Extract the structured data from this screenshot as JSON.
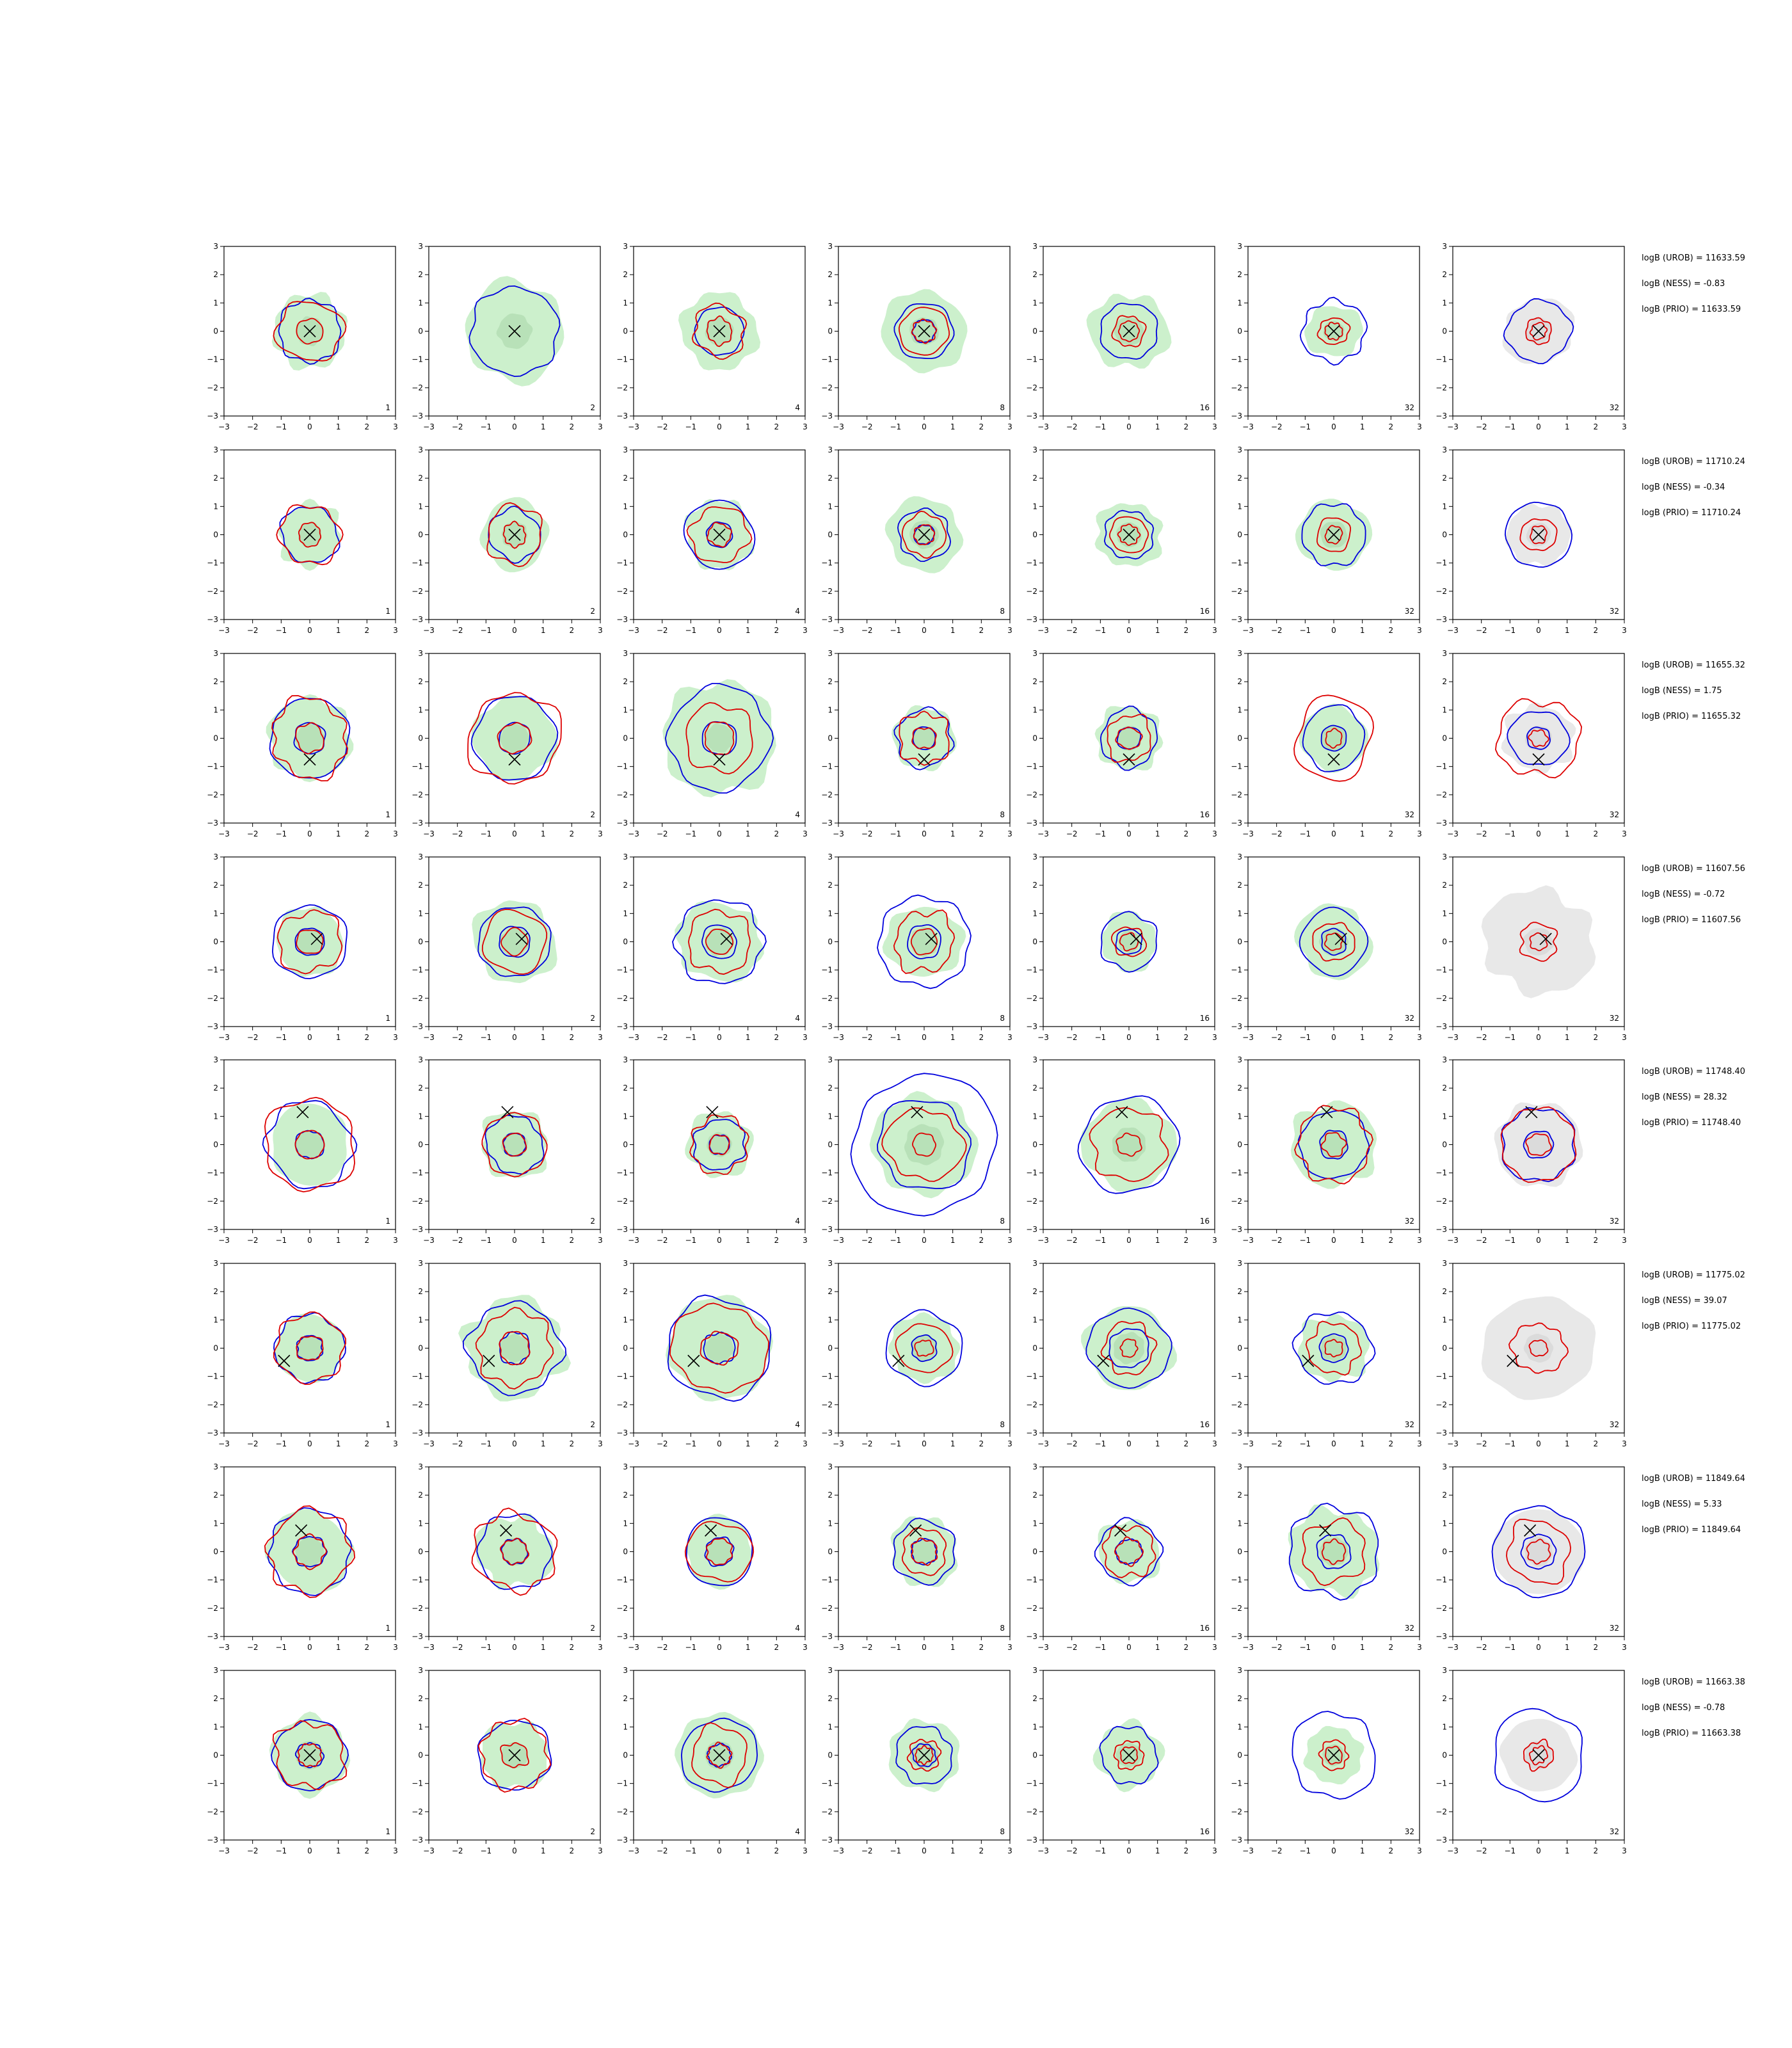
{
  "chart_data": {
    "type": "contour",
    "layout": {
      "rows": 8,
      "cols": 7
    },
    "axes": {
      "xlim": [
        -3,
        3
      ],
      "ylim": [
        -3,
        3
      ],
      "xticks": [
        -3,
        -2,
        -1,
        0,
        1,
        2,
        3
      ],
      "yticks": [
        -3,
        -2,
        -1,
        0,
        1,
        2,
        3
      ],
      "xticklabels": [
        "−3",
        "−2",
        "−1",
        "0",
        "1",
        "2",
        "3"
      ],
      "yticklabels": [
        "−3",
        "−2",
        "−1",
        "0",
        "1",
        "2",
        "3"
      ]
    },
    "panel_labels": [
      "1",
      "2",
      "4",
      "8",
      "16",
      "32",
      "32"
    ],
    "colors": {
      "fill_light": "#ccf0cc",
      "fill_dark": "#a8d6a8",
      "fill_gray_light": "#e8e8e8",
      "fill_gray_dark": "#d0d0d0",
      "blue": "#0000dd",
      "red": "#dd0000",
      "marker": "#000000"
    },
    "rows": [
      {
        "annotations": [
          "logB (UROB) = 11633.59",
          "logB (NESS) = -0.83",
          "logB (PRIO) = 11633.59"
        ],
        "marker": [
          0,
          0
        ],
        "panels": [
          {
            "fill": 1.3,
            "blue": [
              1.1
            ],
            "red": [
              1.1,
              0.45
            ]
          },
          {
            "fill": 1.75,
            "blue": [
              1.55
            ],
            "red": [],
            "dark": 0.6
          },
          {
            "fill": 1.35,
            "blue": [
              0.85
            ],
            "red": [
              0.9,
              0.45
            ]
          },
          {
            "fill": 1.45,
            "blue": [
              1.0,
              0.4
            ],
            "red": [
              0.85,
              0.4
            ]
          },
          {
            "fill": 1.35,
            "blue": [
              1.0
            ],
            "red": [
              0.55,
              0.35
            ]
          },
          {
            "fill": 0.95,
            "blue": [
              1.1
            ],
            "red": [
              0.5,
              0.3
            ]
          },
          {
            "fill": 1.2,
            "blue": [
              1.1
            ],
            "red": [
              0.45,
              0.28
            ],
            "gray": true
          }
        ]
      },
      {
        "annotations": [
          "logB (UROB) = 11710.24",
          "logB (NESS) = -0.34",
          "logB (PRIO) = 11710.24"
        ],
        "marker": [
          0,
          0
        ],
        "panels": [
          {
            "fill": 1.1,
            "blue": [
              1.0
            ],
            "red": [
              1.05,
              0.4
            ]
          },
          {
            "fill": 1.2,
            "blue": [
              0.9
            ],
            "red": [
              1.0,
              0.4
            ]
          },
          {
            "fill": 1.2,
            "blue": [
              1.2,
              0.45
            ],
            "red": [
              1.0,
              0.4
            ]
          },
          {
            "fill": 1.3,
            "blue": [
              0.9,
              0.35
            ],
            "red": [
              0.75,
              0.35
            ]
          },
          {
            "fill": 1.15,
            "blue": [
              0.85
            ],
            "red": [
              0.65,
              0.35
            ]
          },
          {
            "fill": 1.25,
            "blue": [
              1.1
            ],
            "red": [
              0.6,
              0.3
            ]
          },
          {
            "fill": 1.1,
            "blue": [
              1.15
            ],
            "red": [
              0.6,
              0.3
            ],
            "gray": true
          }
        ]
      },
      {
        "annotations": [
          "logB (UROB) = 11655.32",
          "logB (NESS) = 1.75",
          "logB (PRIO) = 11655.32"
        ],
        "marker": [
          0,
          -0.75
        ],
        "panels": [
          {
            "fill": 1.45,
            "blue": [
              1.4,
              0.55
            ],
            "red": [
              1.35,
              0.5
            ]
          },
          {
            "fill": 1.45,
            "blue": [
              1.45,
              0.55
            ],
            "red": [
              1.6,
              0.55
            ]
          },
          {
            "fill": 2.0,
            "blue": [
              1.8,
              0.6
            ],
            "red": [
              1.2,
              0.55
            ]
          },
          {
            "fill": 1.1,
            "blue": [
              1.0,
              0.4
            ],
            "red": [
              0.9,
              0.4
            ]
          },
          {
            "fill": 1.15,
            "blue": [
              1.0,
              0.4
            ],
            "red": [
              0.8,
              0.4
            ]
          },
          {
            "fill": 1.15,
            "blue": [
              1.1,
              0.45
            ],
            "red": [
              1.4,
              0.3
            ]
          },
          {
            "fill": 1.2,
            "blue": [
              1.0,
              0.4
            ],
            "red": [
              1.4,
              0.3
            ],
            "gray": true
          }
        ]
      },
      {
        "annotations": [
          "logB (UROB) = 11607.56",
          "logB (NESS) = -0.72",
          "logB (PRIO) = 11607.56"
        ],
        "marker": [
          0.25,
          0.1
        ],
        "panels": [
          {
            "fill": 1.2,
            "blue": [
              1.3,
              0.5
            ],
            "red": [
              1.1,
              0.45
            ]
          },
          {
            "fill": 1.45,
            "blue": [
              1.25,
              0.55
            ],
            "red": [
              1.1,
              0.45
            ]
          },
          {
            "fill": 1.45,
            "blue": [
              1.5,
              0.6
            ],
            "red": [
              1.1,
              0.45
            ]
          },
          {
            "fill": 1.3,
            "blue": [
              1.6,
              0.6
            ],
            "red": [
              1.05,
              0.45
            ]
          },
          {
            "fill": 1.0,
            "blue": [
              1.0,
              0.45
            ],
            "red": [
              0.55,
              0.3
            ]
          },
          {
            "fill": 1.3,
            "blue": [
              1.15,
              0.45
            ],
            "red": [
              0.7,
              0.3
            ]
          },
          {
            "fill": 1.9,
            "blue": [],
            "red": [
              0.65,
              0.3
            ],
            "gray": true
          }
        ]
      },
      {
        "annotations": [
          "logB (UROB) = 11748.40",
          "logB (NESS) = 28.32",
          "logB (PRIO) = 11748.40"
        ],
        "marker": [
          -0.25,
          1.15
        ],
        "panels": [
          {
            "fill": 1.4,
            "blue": [
              1.5,
              0.5
            ],
            "red": [
              1.6,
              0.5
            ]
          },
          {
            "fill": 1.2,
            "blue": [
              1.0,
              0.4
            ],
            "red": [
              1.1,
              0.4
            ]
          },
          {
            "fill": 1.15,
            "blue": [
              0.9,
              0.35
            ],
            "red": [
              1.0,
              0.35
            ]
          },
          {
            "fill": 1.8,
            "blue": [
              2.5,
              1.6
            ],
            "red": [
              1.3,
              0.4
            ],
            "dark": 0.7
          },
          {
            "fill": 1.6,
            "blue": [
              1.7
            ],
            "red": [
              1.3,
              0.4
            ],
            "dark": 0.6
          },
          {
            "fill": 1.5,
            "blue": [
              1.2,
              0.5
            ],
            "red": [
              1.3,
              0.4
            ]
          },
          {
            "fill": 1.5,
            "blue": [
              1.3,
              0.5
            ],
            "red": [
              1.3,
              0.4
            ],
            "gray": true
          }
        ]
      },
      {
        "annotations": [
          "logB (UROB) = 11775.02",
          "logB (NESS) = 39.07",
          "logB (PRIO) = 11775.02"
        ],
        "marker": [
          -0.9,
          -0.45
        ],
        "panels": [
          {
            "fill": 1.2,
            "blue": [
              1.2,
              0.45
            ],
            "red": [
              1.2,
              0.45
            ]
          },
          {
            "fill": 1.75,
            "blue": [
              1.6,
              0.55
            ],
            "red": [
              1.3,
              0.55
            ]
          },
          {
            "fill": 1.8,
            "blue": [
              1.8,
              0.55
            ],
            "red": [
              1.6,
              0.6
            ]
          },
          {
            "fill": 1.2,
            "blue": [
              1.3,
              0.45
            ],
            "red": [
              0.9,
              0.3
            ]
          },
          {
            "fill": 1.5,
            "blue": [
              1.4,
              0.7
            ],
            "red": [
              0.9,
              0.3
            ],
            "dark": 0.55
          },
          {
            "fill": 1.2,
            "blue": [
              1.3,
              0.5
            ],
            "red": [
              0.9,
              0.3
            ]
          },
          {
            "fill": 1.9,
            "blue": [],
            "red": [
              0.9,
              0.3
            ],
            "gray": true
          }
        ]
      },
      {
        "annotations": [
          "logB (UROB) = 11849.64",
          "logB (NESS) = 5.33",
          "logB (PRIO) = 11849.64"
        ],
        "marker": [
          -0.3,
          0.75
        ],
        "panels": [
          {
            "fill": 1.45,
            "blue": [
              1.45,
              0.55
            ],
            "red": [
              1.45,
              0.55
            ]
          },
          {
            "fill": 1.3,
            "blue": [
              1.3,
              0.45
            ],
            "red": [
              1.4,
              0.45
            ]
          },
          {
            "fill": 1.2,
            "blue": [
              1.2,
              0.5
            ],
            "red": [
              1.1,
              0.45
            ]
          },
          {
            "fill": 1.2,
            "blue": [
              1.1,
              0.45
            ],
            "red": [
              0.8,
              0.45
            ]
          },
          {
            "fill": 1.1,
            "blue": [
              1.1,
              0.45
            ],
            "red": [
              0.9,
              0.45
            ]
          },
          {
            "fill": 1.55,
            "blue": [
              1.6,
              0.6
            ],
            "red": [
              1.1,
              0.4
            ]
          },
          {
            "fill": 1.55,
            "blue": [
              1.6,
              0.6
            ],
            "red": [
              1.1,
              0.4
            ],
            "gray": true
          }
        ]
      },
      {
        "annotations": [
          "logB (UROB) = 11663.38",
          "logB (NESS) = -0.78",
          "logB (PRIO) = 11663.38"
        ],
        "marker": [
          0,
          0
        ],
        "panels": [
          {
            "fill": 1.35,
            "blue": [
              1.25,
              0.45
            ],
            "red": [
              1.2,
              0.4
            ]
          },
          {
            "fill": 1.2,
            "blue": [
              1.25
            ],
            "red": [
              1.2,
              0.45
            ]
          },
          {
            "fill": 1.5,
            "blue": [
              1.3,
              0.4
            ],
            "red": [
              1.0,
              0.4
            ]
          },
          {
            "fill": 1.25,
            "blue": [
              1.0,
              0.4
            ],
            "red": [
              0.55,
              0.3
            ]
          },
          {
            "fill": 1.15,
            "blue": [
              1.0
            ],
            "red": [
              0.5,
              0.3
            ]
          },
          {
            "fill": 1.0,
            "blue": [
              1.5
            ],
            "red": [
              0.5,
              0.3
            ]
          },
          {
            "fill": 1.3,
            "blue": [
              1.6
            ],
            "red": [
              0.5,
              0.3
            ],
            "gray": true
          }
        ]
      }
    ]
  }
}
